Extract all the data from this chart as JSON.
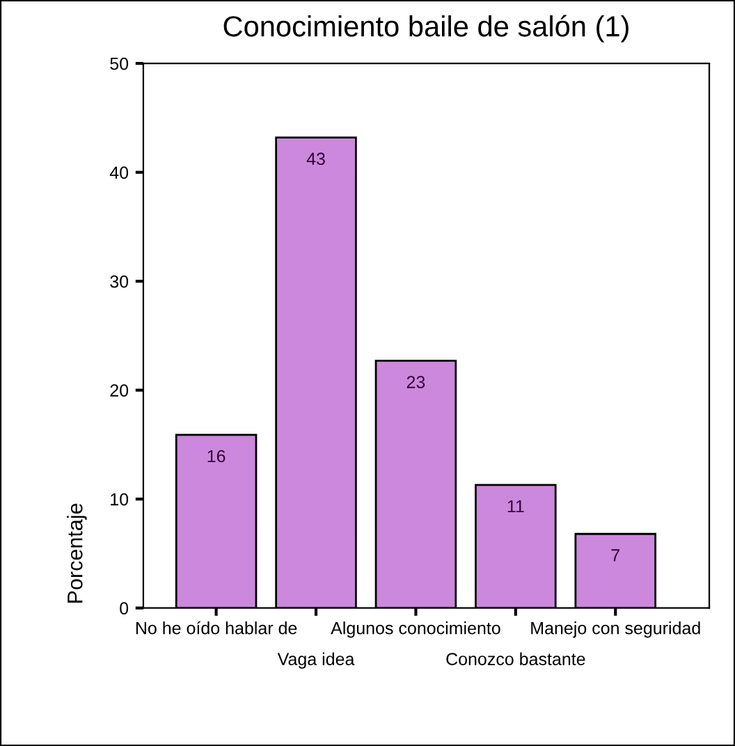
{
  "chart_data": {
    "type": "bar",
    "title": "Conocimiento baile de salón (1)",
    "ylabel": "Porcentaje",
    "categories": [
      "No he oído hablar de",
      "Vaga idea",
      "Algunos conocimiento",
      "Conozco bastante",
      "Manejo con seguridad"
    ],
    "values": [
      15.9,
      43.2,
      22.7,
      11.3,
      6.8
    ],
    "value_labels": [
      "16",
      "43",
      "23",
      "11",
      "7"
    ],
    "color": "#cc88dd",
    "ylim": [
      0,
      50
    ],
    "yticks": [
      0,
      10,
      20,
      30,
      40,
      50
    ],
    "grid": false,
    "legend": false
  }
}
